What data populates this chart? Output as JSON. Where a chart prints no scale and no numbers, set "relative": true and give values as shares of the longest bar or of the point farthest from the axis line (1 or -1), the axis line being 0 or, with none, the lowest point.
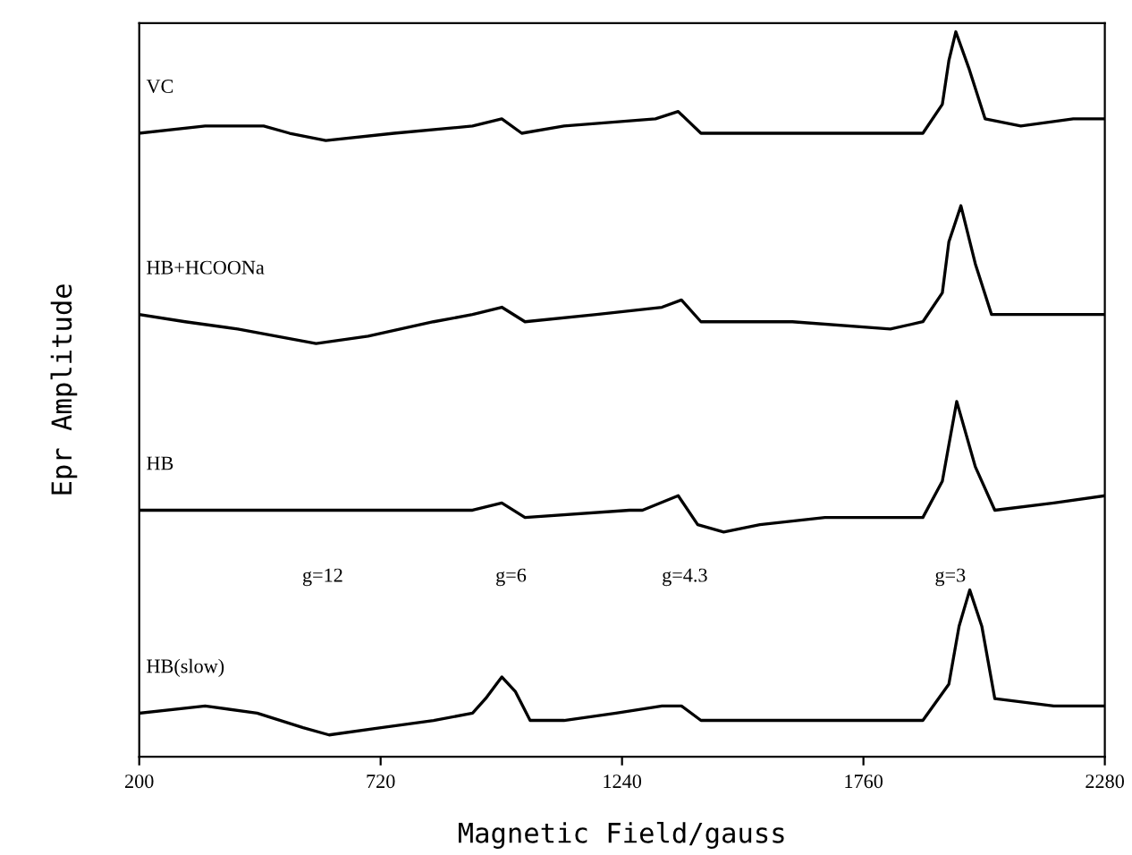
{
  "chart_data": {
    "type": "line",
    "relative": true,
    "xlabel": "Magnetic Field/gauss",
    "ylabel": "Epr Amplitude",
    "xlim": [
      200,
      2280
    ],
    "xticks": [
      200,
      720,
      1240,
      1760,
      2280
    ],
    "tick_labels": "x",
    "grid": false,
    "legend": false,
    "marker": "none",
    "line_style": "solid",
    "series": [
      {
        "name": "VC",
        "color": "#000000",
        "x": [
          200,
          342,
          468,
          524,
          602,
          749,
          918,
          981,
          1024,
          1115,
          1312,
          1361,
          1410,
          1537,
          1677,
          1888,
          1930,
          1944,
          1959,
          1987,
          2022,
          2099,
          2212,
          2280
        ],
        "values": [
          0.86,
          0.87,
          0.87,
          0.86,
          0.85,
          0.86,
          0.87,
          0.88,
          0.86,
          0.87,
          0.88,
          0.89,
          0.86,
          0.86,
          0.86,
          0.86,
          0.9,
          0.96,
          1.0,
          0.95,
          0.88,
          0.87,
          0.88,
          0.88
        ]
      },
      {
        "name": "HB+HCOONa",
        "color": "#000000",
        "x": [
          200,
          299,
          412,
          581,
          693,
          834,
          918,
          981,
          1031,
          1185,
          1326,
          1368,
          1410,
          1607,
          1818,
          1888,
          1930,
          1944,
          1970,
          2001,
          2036,
          2155,
          2280
        ],
        "values": [
          0.61,
          0.6,
          0.59,
          0.57,
          0.58,
          0.6,
          0.61,
          0.62,
          0.6,
          0.61,
          0.62,
          0.63,
          0.6,
          0.6,
          0.59,
          0.6,
          0.64,
          0.71,
          0.76,
          0.68,
          0.61,
          0.61,
          0.61
        ]
      },
      {
        "name": "HB",
        "color": "#000000",
        "x": [
          200,
          412,
          735,
          918,
          981,
          1031,
          1256,
          1284,
          1361,
          1403,
          1459,
          1537,
          1677,
          1888,
          1930,
          1944,
          1961,
          2001,
          2043,
          2170,
          2280
        ],
        "values": [
          0.34,
          0.34,
          0.34,
          0.34,
          0.35,
          0.33,
          0.34,
          0.34,
          0.36,
          0.32,
          0.31,
          0.32,
          0.33,
          0.33,
          0.38,
          0.43,
          0.49,
          0.4,
          0.34,
          0.35,
          0.36
        ]
      },
      {
        "name": "HB(slow)",
        "color": "#000000",
        "x": [
          200,
          342,
          454,
          553,
          609,
          721,
          834,
          918,
          946,
          981,
          1010,
          1042,
          1115,
          1227,
          1326,
          1368,
          1410,
          1537,
          1677,
          1888,
          1944,
          1966,
          1989,
          2015,
          2043,
          2170,
          2280
        ],
        "values": [
          0.06,
          0.07,
          0.06,
          0.04,
          0.03,
          0.04,
          0.05,
          0.06,
          0.08,
          0.11,
          0.09,
          0.05,
          0.05,
          0.06,
          0.07,
          0.07,
          0.05,
          0.05,
          0.05,
          0.05,
          0.1,
          0.18,
          0.23,
          0.18,
          0.08,
          0.07,
          0.07
        ]
      }
    ],
    "annotations": [
      "g=12",
      "g=6",
      "g=4.3",
      "g=3"
    ]
  }
}
